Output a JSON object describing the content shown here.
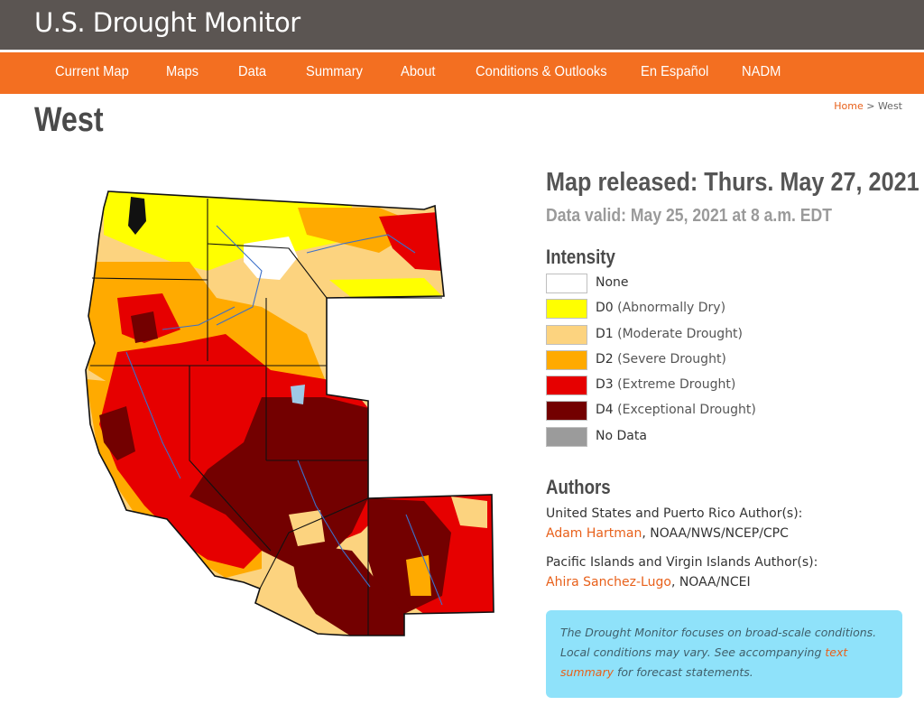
{
  "site": {
    "title": "U.S. Drought Monitor"
  },
  "nav": [
    {
      "label": "Current Map"
    },
    {
      "label": "Maps"
    },
    {
      "label": "Data"
    },
    {
      "label": "Summary"
    },
    {
      "label": "About"
    },
    {
      "label": "Conditions & Outlooks"
    },
    {
      "label": "En Español"
    },
    {
      "label": "NADM"
    }
  ],
  "page": {
    "title": "West"
  },
  "breadcrumb": {
    "home": "Home",
    "separator": ">",
    "current": "West"
  },
  "map_info": {
    "released": "Map released: Thurs. May 27, 2021",
    "valid": "Data valid: May 25, 2021 at 8 a.m. EDT"
  },
  "legend": {
    "heading": "Intensity",
    "items": [
      {
        "code": "None",
        "desc": "",
        "color": "#ffffff"
      },
      {
        "code": "D0",
        "desc": "(Abnormally Dry)",
        "color": "#ffff00"
      },
      {
        "code": "D1",
        "desc": "(Moderate Drought)",
        "color": "#fcd37f"
      },
      {
        "code": "D2",
        "desc": "(Severe Drought)",
        "color": "#ffaa00"
      },
      {
        "code": "D3",
        "desc": "(Extreme Drought)",
        "color": "#e60000"
      },
      {
        "code": "D4",
        "desc": "(Exceptional Drought)",
        "color": "#730000"
      },
      {
        "code": "No Data",
        "desc": "",
        "color": "#9b9b9b"
      }
    ]
  },
  "authors": {
    "heading": "Authors",
    "us_label": "United States and Puerto Rico Author(s):",
    "us_name": "Adam Hartman",
    "us_org": ", NOAA/NWS/NCEP/CPC",
    "pi_label": "Pacific Islands and Virgin Islands Author(s):",
    "pi_name": "Ahira Sanchez-Lugo",
    "pi_org": ", NOAA/NCEI"
  },
  "note": {
    "text_before": "The Drought Monitor focuses on broad-scale conditions. Local conditions may vary. See accompanying ",
    "link": "text summary",
    "text_after": " for forecast statements."
  },
  "colors": {
    "header_bg": "#5b5552",
    "nav_bg": "#f36f21",
    "link": "#e8601a",
    "note_bg": "#8fe2fa"
  }
}
